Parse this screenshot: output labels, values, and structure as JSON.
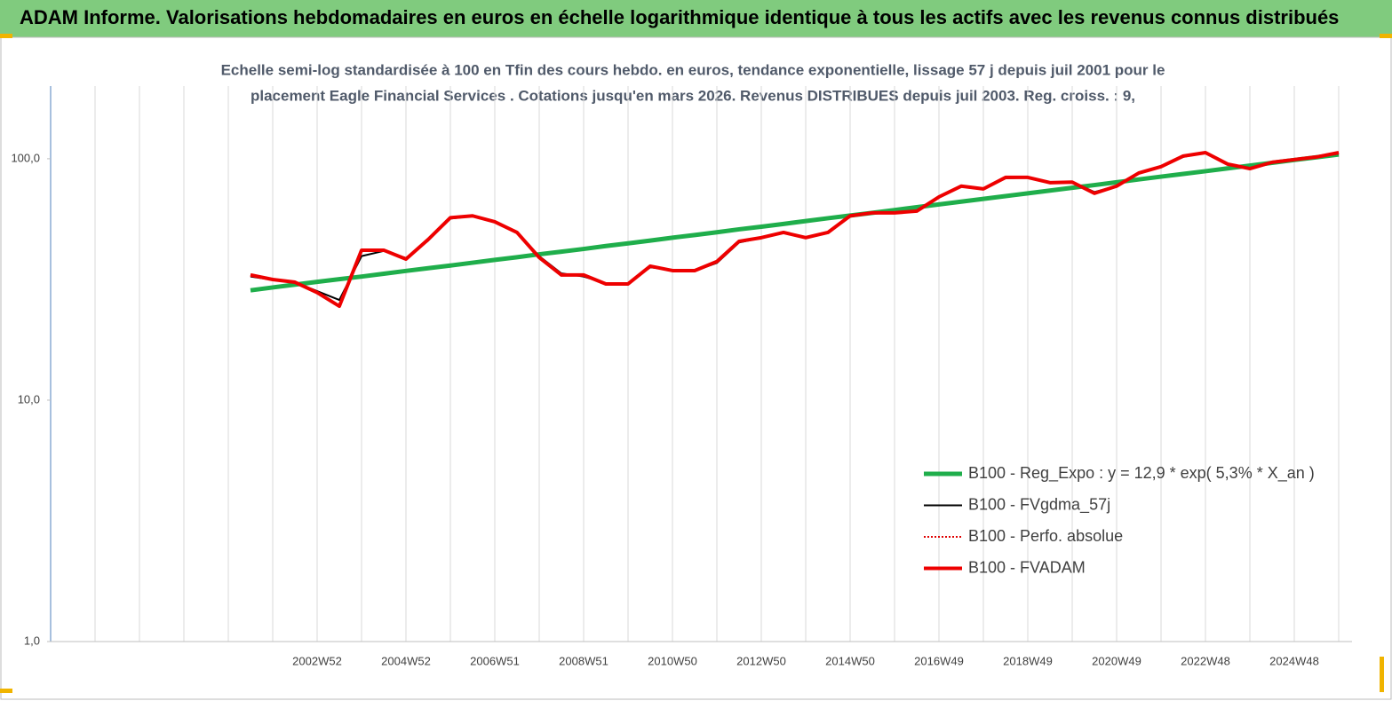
{
  "header_title": "ADAM Informe. Valorisations hebdomadaires en euros en échelle logarithmique identique à tous les actifs avec les revenus connus distribués",
  "chart_data": {
    "type": "line",
    "title": "Echelle semi-log standardisée à 100 en Tfin des cours hebdo. en euros, tendance exponentielle, lissage 57 j depuis juil 2001 pour le",
    "subtitle": "placement Eagle Financial Services  . Cotations jusqu'en mars 2026. Revenus DISTRIBUES depuis juil 2003. Reg. croiss. : 9,",
    "categories": [
      null,
      null,
      null,
      null,
      null,
      null,
      null,
      null,
      null,
      null,
      null,
      null,
      "2002W52",
      null,
      null,
      null,
      "2004W52",
      null,
      null,
      null,
      "2006W51",
      null,
      null,
      null,
      "2008W51",
      null,
      null,
      null,
      "2010W50",
      null,
      null,
      null,
      "2012W50",
      null,
      null,
      null,
      "2014W50",
      null,
      null,
      null,
      "2016W49",
      null,
      null,
      null,
      "2018W49",
      null,
      null,
      null,
      "2020W49",
      null,
      null,
      null,
      "2022W48",
      null,
      null,
      null,
      "2024W48",
      null,
      null
    ],
    "log_scale": true,
    "ylim": [
      1,
      200
    ],
    "yticks": [
      {
        "value": 1,
        "label": "1,0"
      },
      {
        "value": 10,
        "label": "10,0"
      },
      {
        "value": 100,
        "label": "100,0"
      }
    ],
    "legend": "lower right",
    "series": [
      {
        "name": "B100 - Reg_Expo : y = 12,9 *  exp( 5,3% *  X_an )",
        "color": "#1fae4b",
        "style": "solid",
        "width": 5,
        "values": [
          null,
          null,
          null,
          null,
          null,
          null,
          null,
          null,
          null,
          28.5,
          29.3,
          30.1,
          30.9,
          31.7,
          32.5,
          33.4,
          34.3,
          35.2,
          36.1,
          37.1,
          38.1,
          39.1,
          40.2,
          41.2,
          42.3,
          43.5,
          44.6,
          45.8,
          47.1,
          48.3,
          49.6,
          51.0,
          52.3,
          53.7,
          55.2,
          56.7,
          58.2,
          59.7,
          61.3,
          63.0,
          64.7,
          66.4,
          68.2,
          70.0,
          71.9,
          73.8,
          75.8,
          77.8,
          79.9,
          82.1,
          84.3,
          86.5,
          88.8,
          91.2,
          93.7,
          96.2,
          98.8,
          101.4,
          104.1
        ]
      },
      {
        "name": "B100 - FVgdma_57j",
        "color": "#000000",
        "style": "solid",
        "width": 2,
        "values": [
          null,
          null,
          null,
          null,
          null,
          null,
          null,
          null,
          null,
          32.5,
          31.5,
          30.8,
          28.3,
          26.0,
          39.5,
          41.5,
          38.8,
          45.8,
          56.5,
          57.8,
          55.0,
          49.8,
          39.5,
          33.5,
          32.5,
          30.5,
          30.5,
          35.5,
          34.6,
          34.3,
          37.0,
          45.0,
          47.0,
          49.2,
          47.3,
          49.3,
          57.5,
          59.5,
          59.8,
          60.5,
          69.0,
          76.5,
          75.2,
          83.0,
          83.5,
          80.0,
          80.2,
          72.8,
          77.2,
          86.8,
          92.3,
          101.8,
          105.5,
          95.5,
          91.2,
          96.3,
          99.0,
          101.5,
          105.0
        ]
      },
      {
        "name": "B100 - Perfo. absolue",
        "color": "#e00000",
        "style": "dotted",
        "width": 2,
        "values": [
          null,
          null,
          null,
          null,
          null,
          null,
          null,
          null,
          null,
          33,
          31.6,
          30.8,
          27.9,
          24.5,
          41.8,
          41.8,
          38.4,
          46.3,
          57,
          58,
          54.8,
          49.5,
          39,
          33,
          33,
          30.3,
          30.3,
          35.9,
          34.4,
          34.4,
          37.5,
          45.5,
          47.1,
          49.5,
          47.1,
          49.5,
          58,
          59.7,
          59.7,
          60.7,
          69.5,
          77,
          75,
          83.7,
          83.7,
          79.6,
          80,
          71.9,
          77,
          87.3,
          92.7,
          102.6,
          106,
          95,
          91,
          96.7,
          99.2,
          101.7,
          106
        ]
      },
      {
        "name": "B100 - FVADAM",
        "color": "#ee0000",
        "style": "solid",
        "width": 4,
        "values": [
          null,
          null,
          null,
          null,
          null,
          null,
          null,
          null,
          null,
          33,
          31.6,
          30.8,
          27.9,
          24.5,
          41.8,
          41.8,
          38.4,
          46.3,
          57,
          58,
          54.8,
          49.5,
          39,
          33,
          33,
          30.3,
          30.3,
          35.9,
          34.4,
          34.4,
          37.5,
          45.5,
          47.1,
          49.5,
          47.1,
          49.5,
          58,
          59.7,
          59.7,
          60.7,
          69.5,
          77,
          75,
          83.7,
          83.7,
          79.6,
          80,
          71.9,
          77,
          87.3,
          92.7,
          102.6,
          106,
          95,
          91,
          96.7,
          99.2,
          101.7,
          106
        ]
      }
    ]
  }
}
